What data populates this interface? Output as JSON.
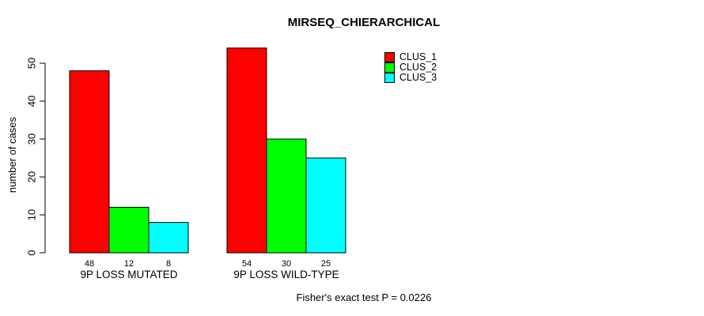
{
  "chart_data": {
    "type": "bar",
    "title": "MIRSEQ_CHIERARCHICAL",
    "ylabel": "number of cases",
    "xlabel": "",
    "categories": [
      "9P LOSS MUTATED",
      "9P LOSS WILD-TYPE"
    ],
    "series": [
      {
        "name": "CLUS_1",
        "color": "#FF0000",
        "values": [
          48,
          54
        ]
      },
      {
        "name": "CLUS_2",
        "color": "#00FF00",
        "values": [
          12,
          30
        ]
      },
      {
        "name": "CLUS_3",
        "color": "#00FFFF",
        "values": [
          8,
          25
        ]
      }
    ],
    "yticks": [
      0,
      10,
      20,
      30,
      40,
      50
    ],
    "ylim": [
      0,
      54
    ],
    "grid": false,
    "show_bar_values": true,
    "legend_position": "top-right",
    "annotation": "Fisher's exact test P = 0.0226",
    "colors": {
      "bar_border": "#000000",
      "axis": "#000000",
      "text": "#000000",
      "background": "#FFFFFF"
    }
  }
}
